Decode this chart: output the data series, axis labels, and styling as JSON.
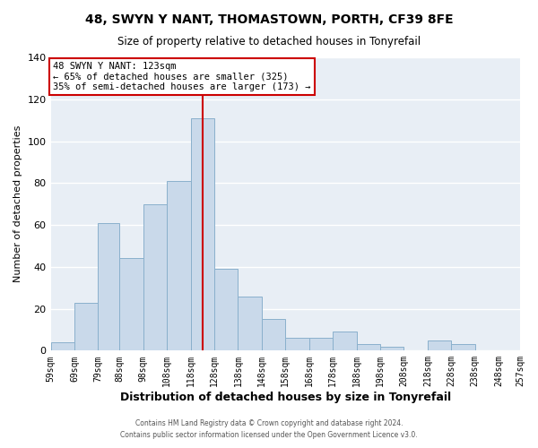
{
  "title": "48, SWYN Y NANT, THOMASTOWN, PORTH, CF39 8FE",
  "subtitle": "Size of property relative to detached houses in Tonyrefail",
  "xlabel": "Distribution of detached houses by size in Tonyrefail",
  "ylabel": "Number of detached properties",
  "bar_color": "#c9d9ea",
  "bar_edge_color": "#8ab0cc",
  "background_color": "#e8eef5",
  "grid_color": "#ffffff",
  "bin_labels": [
    "59sqm",
    "69sqm",
    "79sqm",
    "88sqm",
    "98sqm",
    "108sqm",
    "118sqm",
    "128sqm",
    "138sqm",
    "148sqm",
    "158sqm",
    "168sqm",
    "178sqm",
    "188sqm",
    "198sqm",
    "208sqm",
    "218sqm",
    "228sqm",
    "238sqm",
    "248sqm",
    "257sqm"
  ],
  "bin_edges": [
    59,
    69,
    79,
    88,
    98,
    108,
    118,
    128,
    138,
    148,
    158,
    168,
    178,
    188,
    198,
    208,
    218,
    228,
    238,
    248,
    257
  ],
  "counts": [
    4,
    23,
    61,
    44,
    70,
    81,
    111,
    39,
    26,
    15,
    6,
    6,
    9,
    3,
    2,
    0,
    5,
    3,
    0,
    0
  ],
  "property_size": 123,
  "annotation_title": "48 SWYN Y NANT: 123sqm",
  "annotation_line1": "← 65% of detached houses are smaller (325)",
  "annotation_line2": "35% of semi-detached houses are larger (173) →",
  "vline_color": "#cc0000",
  "annotation_box_color": "#ffffff",
  "annotation_box_edge": "#cc0000",
  "ylim": [
    0,
    140
  ],
  "yticks": [
    0,
    20,
    40,
    60,
    80,
    100,
    120,
    140
  ],
  "footer1": "Contains HM Land Registry data © Crown copyright and database right 2024.",
  "footer2": "Contains public sector information licensed under the Open Government Licence v3.0."
}
